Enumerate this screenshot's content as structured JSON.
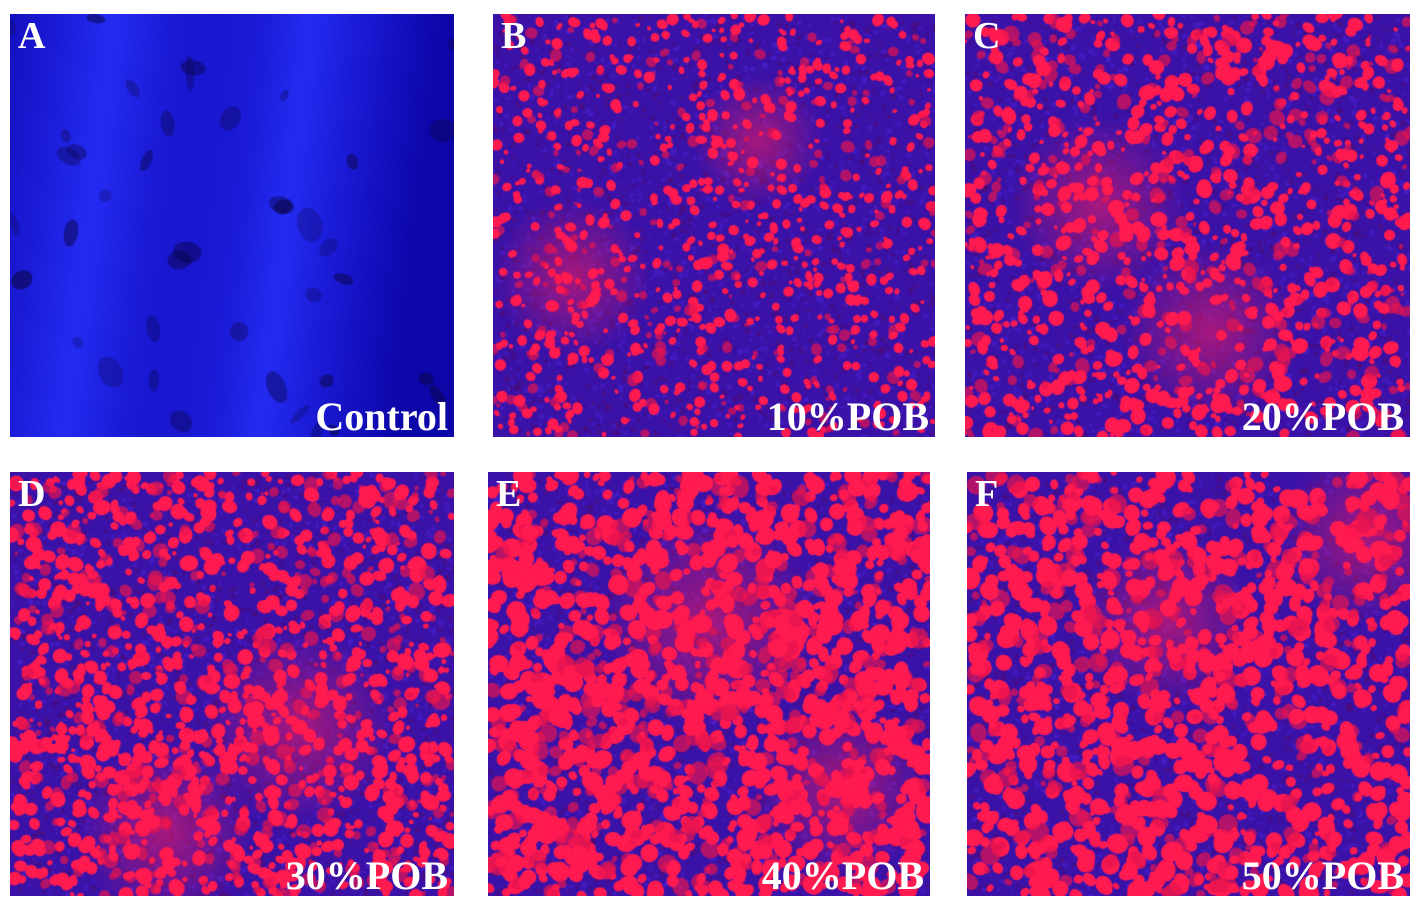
{
  "figure": {
    "panels": [
      {
        "letter": "A",
        "condition": "Control",
        "stain": "blue-only"
      },
      {
        "letter": "B",
        "condition": "10%POB",
        "stain": "red-droplets-on-blue"
      },
      {
        "letter": "C",
        "condition": "20%POB",
        "stain": "red-droplets-on-blue"
      },
      {
        "letter": "D",
        "condition": "30%POB",
        "stain": "red-droplets-on-blue"
      },
      {
        "letter": "E",
        "condition": "40%POB",
        "stain": "red-droplets-on-blue"
      },
      {
        "letter": "F",
        "condition": "50%POB",
        "stain": "red-droplets-on-blue"
      }
    ],
    "colors": {
      "background_blue": "#1a10c8",
      "dark_blue": "#0c0590",
      "red_stain": "#ff1a50",
      "label_white": "#ffffff"
    }
  }
}
